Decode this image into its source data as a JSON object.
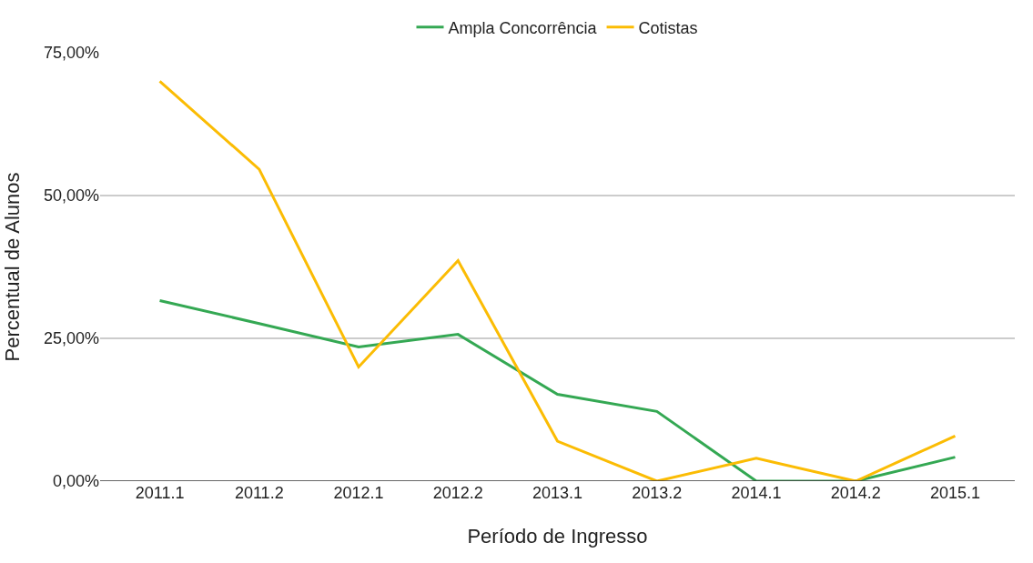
{
  "chart_data": {
    "type": "line",
    "xlabel": "Período de Ingresso",
    "ylabel": "Percentual de Alunos",
    "categories": [
      "2011.1",
      "2011.2",
      "2012.1",
      "2012.2",
      "2013.1",
      "2013.2",
      "2014.1",
      "2014.2",
      "2015.1"
    ],
    "series": [
      {
        "name": "Ampla Concorrência",
        "color": "#34a853",
        "values": [
          31.6,
          27.6,
          23.5,
          25.7,
          15.2,
          12.2,
          0,
          0,
          4.2
        ]
      },
      {
        "name": "Cotistas",
        "color": "#fbbc04",
        "values": [
          70.0,
          54.6,
          20.0,
          38.6,
          7.0,
          0,
          4.0,
          0,
          7.9
        ]
      }
    ],
    "ylim": [
      0,
      75
    ],
    "yticks": [
      {
        "value": 0,
        "label": "0,00%"
      },
      {
        "value": 25,
        "label": "25,00%"
      },
      {
        "value": 50,
        "label": "50,00%"
      },
      {
        "value": 75,
        "label": "75,00%"
      }
    ],
    "grid": "y",
    "legend": "top",
    "marker": "none",
    "line_style": "solid"
  }
}
